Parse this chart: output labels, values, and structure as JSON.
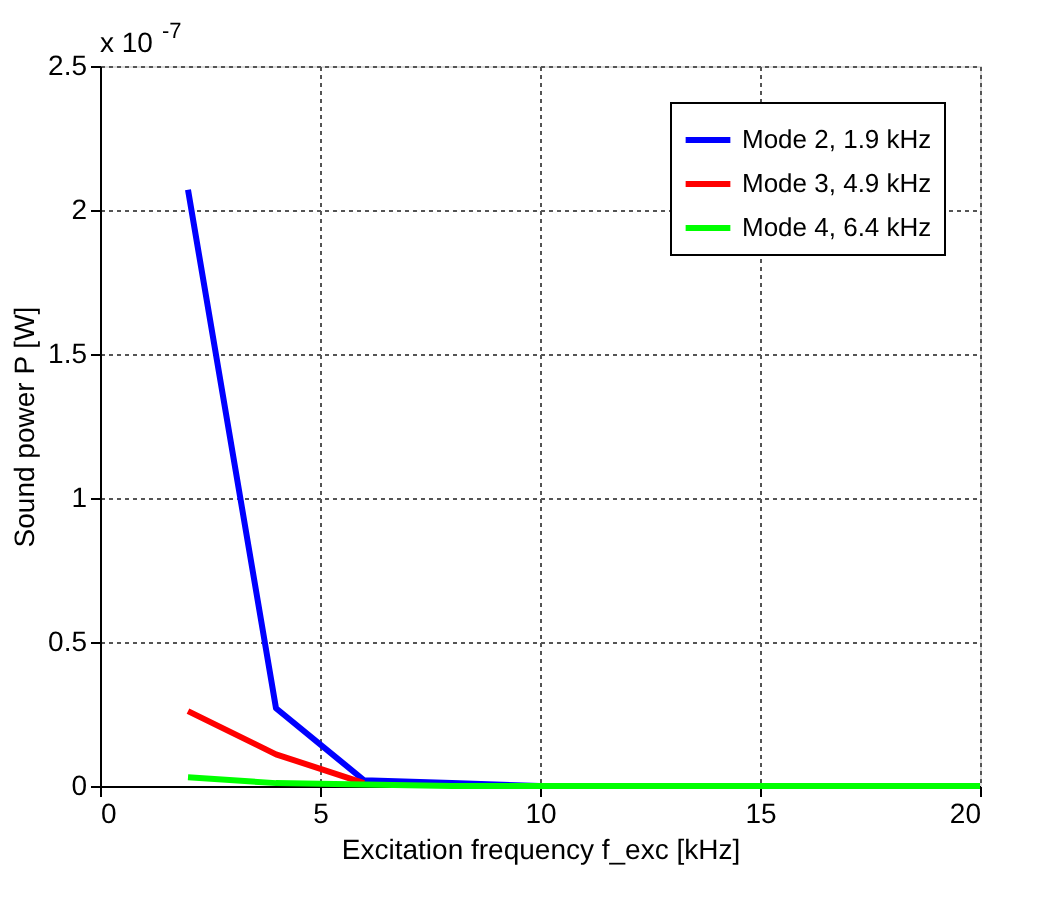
{
  "chart_data": {
    "type": "line",
    "xlabel": "Excitation frequency f_exc [kHz]",
    "ylabel": "Sound power P [W]",
    "x": [
      2,
      4,
      6,
      8,
      10,
      12,
      14,
      16,
      18,
      20
    ],
    "series": [
      {
        "name": "Mode 2, 1.9 kHz",
        "color": "#0000ff",
        "values": [
          2.07,
          0.27,
          0.02,
          0.01,
          0,
          0,
          null,
          null,
          null,
          null
        ]
      },
      {
        "name": "Mode 3, 4.9 kHz",
        "color": "#ff0000",
        "values": [
          0.26,
          0.11,
          0.01,
          null,
          null,
          null,
          null,
          null,
          null,
          null
        ]
      },
      {
        "name": "Mode 4, 6.4 kHz",
        "color": "#00ff00",
        "values": [
          0.03,
          0.01,
          0.005,
          0,
          0,
          0,
          0,
          0,
          0,
          0
        ]
      }
    ],
    "xlim": [
      0,
      20
    ],
    "xticks": [
      0,
      5,
      10,
      15,
      20
    ],
    "ylim": [
      0,
      2.5
    ],
    "yticks": [
      0,
      0.5,
      1,
      1.5,
      2,
      2.5
    ],
    "annotations": [
      "x 10$^{-7}$"
    ],
    "grid": true,
    "legend": "top right",
    "marker": "none",
    "line_style": "solid"
  }
}
